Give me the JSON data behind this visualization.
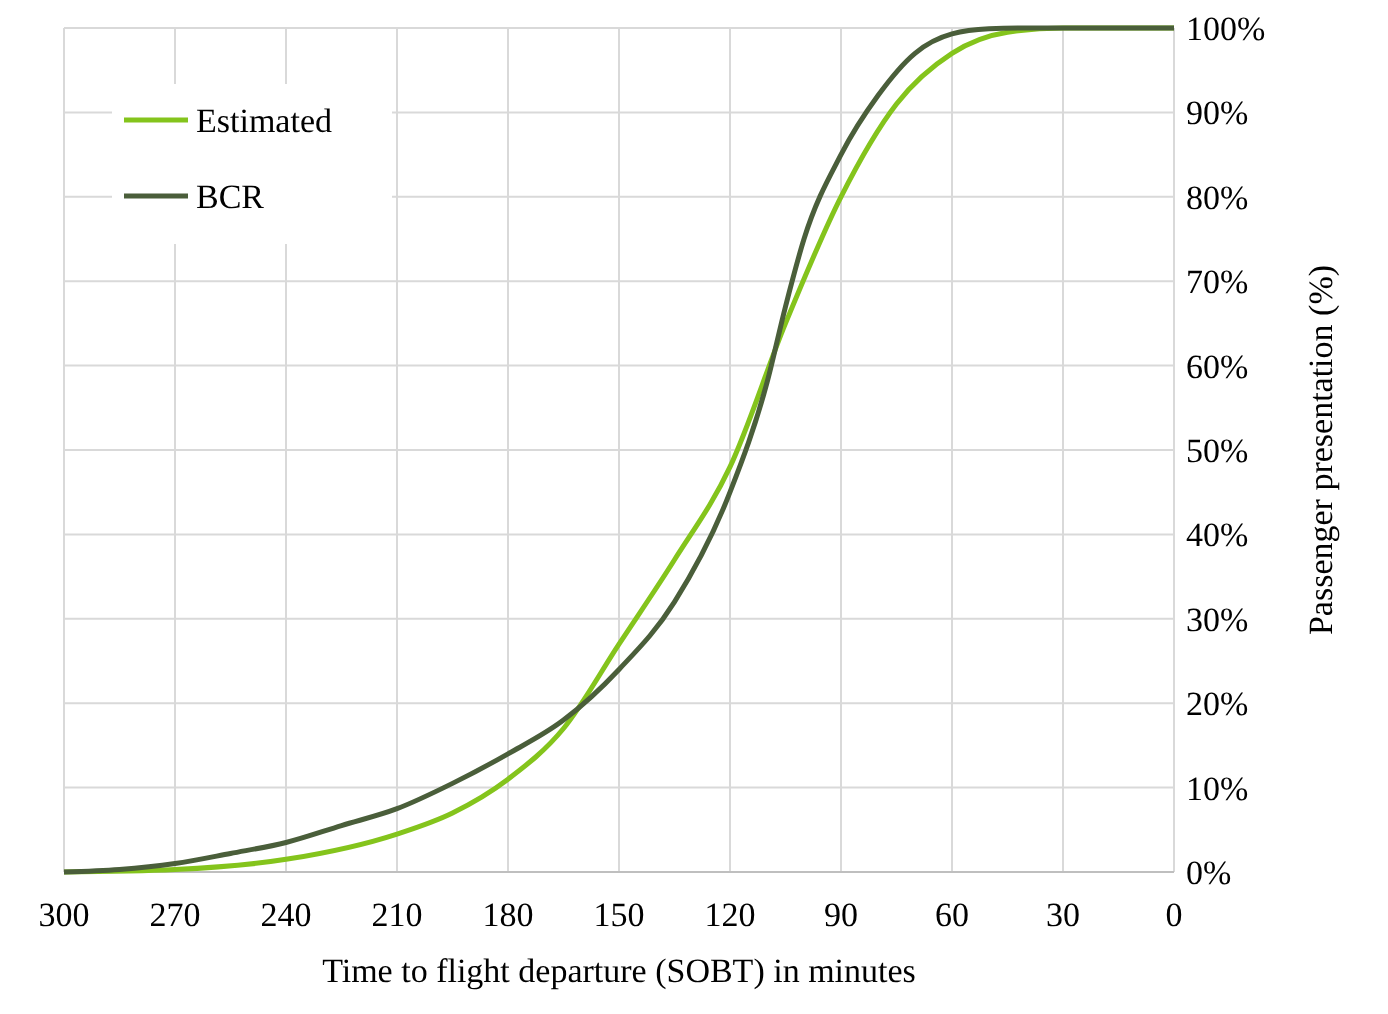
{
  "chart_data": {
    "type": "line",
    "xlabel": "Time to flight departure (SOBT) in minutes",
    "ylabel": "Passenger presentation (%)",
    "xlim": [
      300,
      0
    ],
    "xticks": [
      300,
      270,
      240,
      210,
      180,
      150,
      120,
      90,
      60,
      30,
      0
    ],
    "ylim": [
      0,
      100
    ],
    "yticks": [
      {
        "value": 0,
        "label": "0%"
      },
      {
        "value": 10,
        "label": "10%"
      },
      {
        "value": 20,
        "label": "20%"
      },
      {
        "value": 30,
        "label": "30%"
      },
      {
        "value": 40,
        "label": "40%"
      },
      {
        "value": 50,
        "label": "50%"
      },
      {
        "value": 60,
        "label": "60%"
      },
      {
        "value": 70,
        "label": "70%"
      },
      {
        "value": 80,
        "label": "80%"
      },
      {
        "value": 90,
        "label": "90%"
      },
      {
        "value": 100,
        "label": "100%"
      }
    ],
    "grid": true,
    "legend": "top left",
    "marker": "none",
    "line_style": "solid",
    "series": [
      {
        "name": "Estimated",
        "color": "#84c41c",
        "x": [
          300,
          270,
          240,
          210,
          195,
          180,
          165,
          150,
          135,
          120,
          105,
          90,
          75,
          60,
          45,
          30,
          0
        ],
        "values": [
          0,
          0.3,
          1.5,
          4.5,
          7,
          11,
          17,
          27,
          37,
          48,
          65,
          80,
          91,
          97,
          99.5,
          100,
          100
        ]
      },
      {
        "name": "BCR",
        "color": "#4a5e3a",
        "x": [
          300,
          285,
          270,
          255,
          240,
          225,
          210,
          195,
          180,
          165,
          150,
          135,
          120,
          110,
          105,
          100,
          90,
          80,
          70,
          60,
          50,
          40,
          0
        ],
        "values": [
          0,
          0.3,
          1,
          2.2,
          3.5,
          5.5,
          7.5,
          10.5,
          14,
          18,
          24,
          32,
          45,
          58,
          67,
          75,
          85,
          92,
          97,
          99.3,
          99.9,
          100,
          100
        ]
      }
    ]
  }
}
